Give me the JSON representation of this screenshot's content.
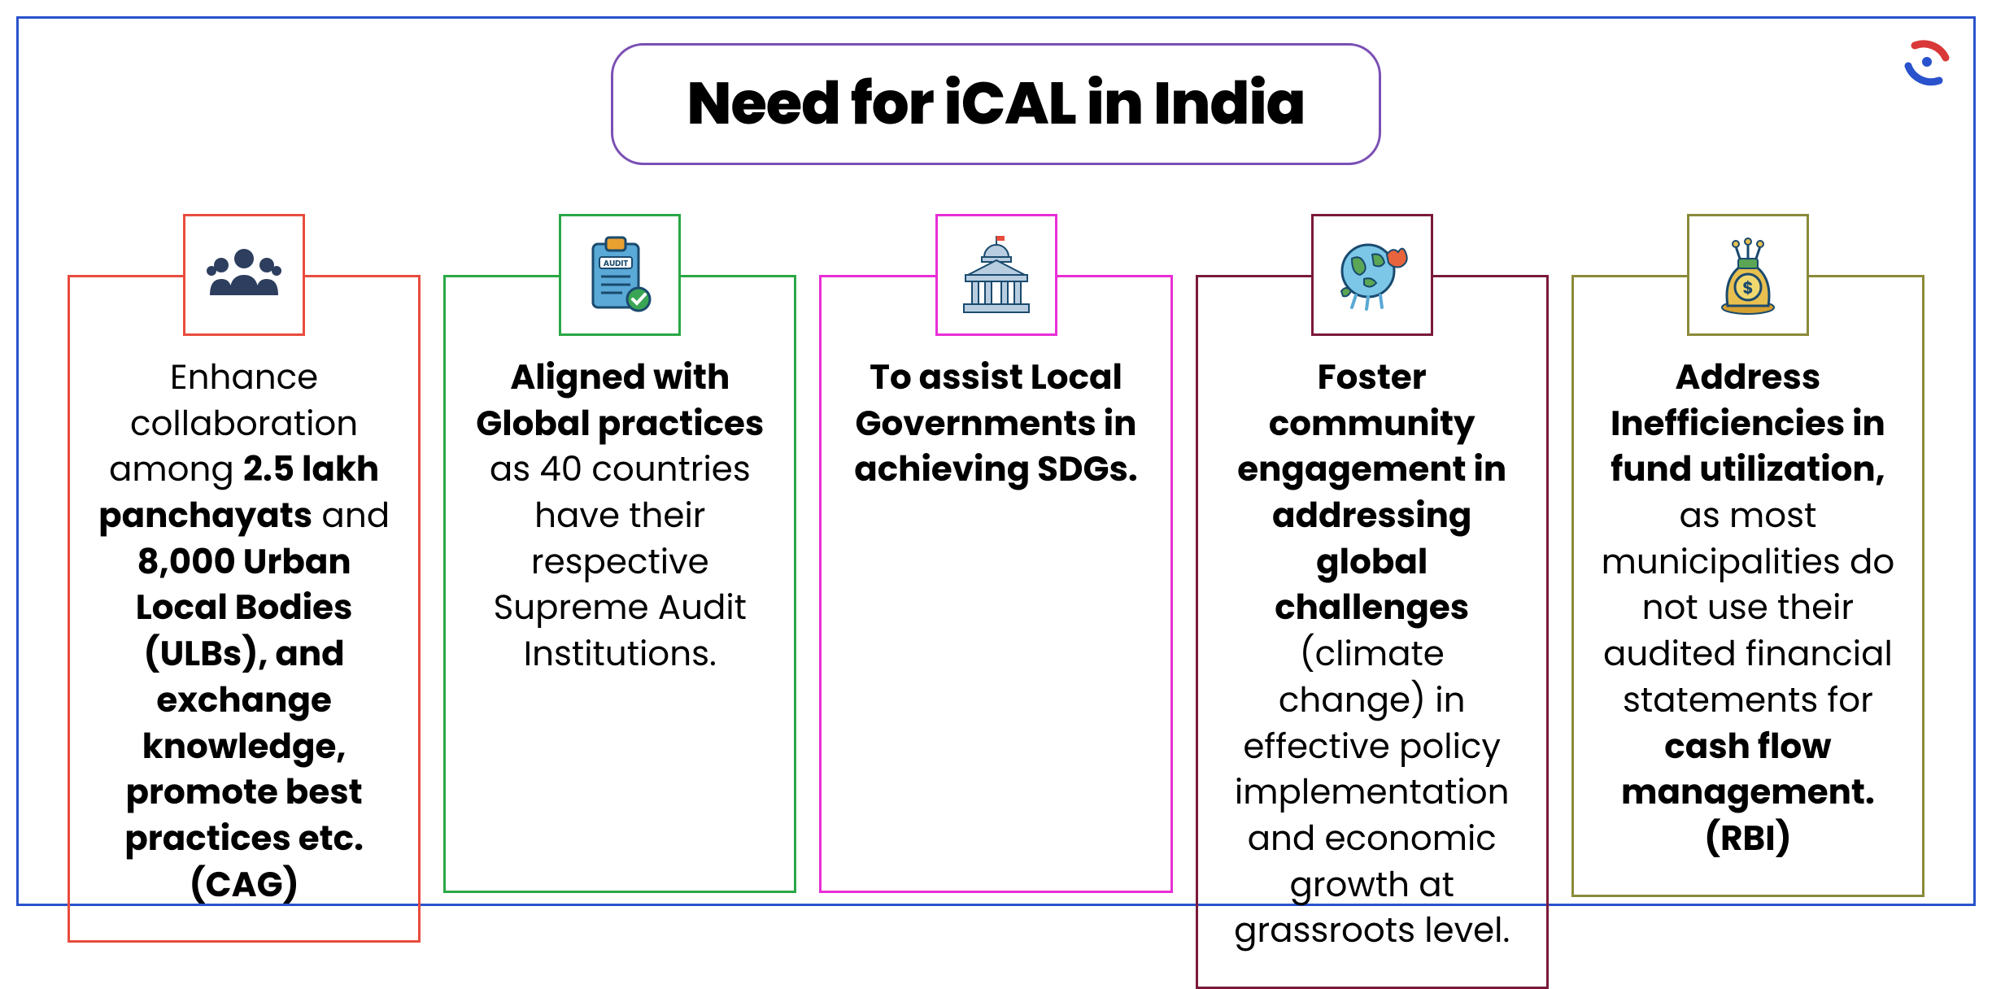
{
  "title": "Need for iCAL in India",
  "title_border_color": "#7a4fb5",
  "outer_border_color": "#2952cc",
  "logo": {
    "arc1_color": "#d93838",
    "arc2_color": "#2952cc"
  },
  "cards": [
    {
      "border_color": "#e84c3d",
      "icon": "people",
      "segments": [
        {
          "text": "Enhance collaboration among ",
          "bold": false
        },
        {
          "text": "2.5 lakh panchayats",
          "bold": true
        },
        {
          "text": " and ",
          "bold": false
        },
        {
          "text": "8,000 Urban Local Bodies (ULBs), and exchange knowledge, promote best practices etc. (CAG)",
          "bold": true
        }
      ]
    },
    {
      "border_color": "#2aa745",
      "icon": "audit",
      "segments": [
        {
          "text": "Aligned with Global practices",
          "bold": true
        },
        {
          "text": " as 40 countries have their respective Supreme Audit Institutions.",
          "bold": false
        }
      ]
    },
    {
      "border_color": "#e82fd5",
      "icon": "government",
      "segments": [
        {
          "text": "To assist Local Governments in achieving SDGs.",
          "bold": true
        }
      ]
    },
    {
      "border_color": "#7a1a3a",
      "icon": "globe",
      "segments": [
        {
          "text": "Foster community engagement in addressing global challenges",
          "bold": true
        },
        {
          "text": " (climate change) in effective policy implementation and economic growth at grassroots level.",
          "bold": false
        }
      ]
    },
    {
      "border_color": "#8a8a3a",
      "icon": "money",
      "segments": [
        {
          "text": "Address Inefficiencies in fund utilization,",
          "bold": true
        },
        {
          "text": " as most municipalities do not use their audited financial statements for ",
          "bold": false
        },
        {
          "text": "cash flow management. (RBI)",
          "bold": true
        }
      ]
    }
  ]
}
